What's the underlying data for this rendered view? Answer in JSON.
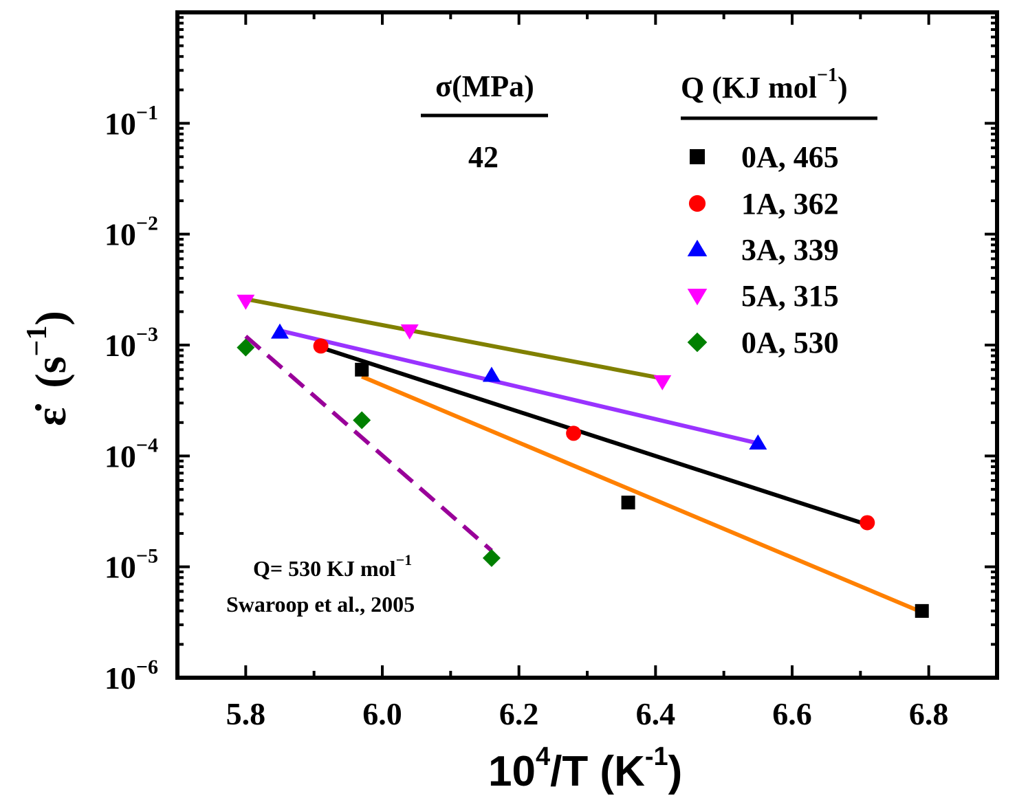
{
  "chart_data": {
    "type": "scatter",
    "title": "",
    "xlabel": "10^4/T (K^-1)",
    "xlabel_parts": {
      "base": "10",
      "sup1": "4",
      "mid": "/T (K",
      "sup2": "-1",
      "end": ")"
    },
    "ylabel": "ε̇ (s^-1)",
    "ylabel_parts": {
      "symbol": "ε̇",
      "open": "(s",
      "sup": "−1",
      "close": ")"
    },
    "xlim": [
      5.7,
      6.9
    ],
    "ylim_log10": [
      -6,
      0
    ],
    "y_scale": "log",
    "x_ticks": [
      5.8,
      6.0,
      6.2,
      6.4,
      6.6,
      6.8
    ],
    "x_tick_labels": [
      "5.8",
      "6.0",
      "6.2",
      "6.4",
      "6.6",
      "6.8"
    ],
    "y_tick_labels": [
      {
        "exp": -1,
        "base": "10",
        "sup": "−1"
      },
      {
        "exp": -2,
        "base": "10",
        "sup": "−2"
      },
      {
        "exp": -3,
        "base": "10",
        "sup": "−3"
      },
      {
        "exp": -4,
        "base": "10",
        "sup": "−4"
      },
      {
        "exp": -5,
        "base": "10",
        "sup": "−5"
      },
      {
        "exp": -6,
        "base": "10",
        "sup": "−6"
      }
    ],
    "stress_header": "σ(MPa)",
    "stress_value": "42",
    "q_header": "Q (KJ mol",
    "q_header_sup": "−1",
    "q_header_close": ")",
    "series": [
      {
        "name": "0A, 465",
        "marker": "square",
        "color": "#000000",
        "fit_color": "#ff8000",
        "x": [
          5.97,
          6.36,
          6.79
        ],
        "y": [
          0.0006,
          3.8e-05,
          4e-06
        ],
        "fit": {
          "x": [
            5.97,
            6.79
          ],
          "y": [
            0.00052,
            3.9e-06
          ],
          "dashed": false
        }
      },
      {
        "name": "1A, 362",
        "marker": "circle",
        "color": "#ff0000",
        "fit_color": "#000000",
        "x": [
          5.91,
          6.28,
          6.71
        ],
        "y": [
          0.00098,
          0.00016,
          2.5e-05
        ],
        "fit": {
          "x": [
            5.91,
            6.71
          ],
          "y": [
            0.00095,
            2.4e-05
          ],
          "dashed": false
        }
      },
      {
        "name": "3A, 339",
        "marker": "triangle-up",
        "color": "#0000ff",
        "fit_color": "#9933ff",
        "x": [
          5.85,
          6.16,
          6.55
        ],
        "y": [
          0.0013,
          0.00053,
          0.00013
        ],
        "fit": {
          "x": [
            5.85,
            6.55
          ],
          "y": [
            0.00135,
            0.00013
          ],
          "dashed": false
        }
      },
      {
        "name": "5A, 315",
        "marker": "triangle-down",
        "color": "#ff00ff",
        "fit_color": "#808000",
        "x": [
          5.8,
          6.04,
          6.41
        ],
        "y": [
          0.0025,
          0.00135,
          0.00047
        ],
        "fit": {
          "x": [
            5.8,
            6.41
          ],
          "y": [
            0.0026,
            0.0005
          ],
          "dashed": false
        }
      },
      {
        "name": "0A, 530",
        "marker": "diamond",
        "color": "#008000",
        "fit_color": "#990099",
        "x": [
          5.8,
          5.97,
          6.16
        ],
        "y": [
          0.00095,
          0.00021,
          1.2e-05
        ],
        "fit": {
          "x": [
            5.8,
            6.16
          ],
          "y": [
            0.0012,
            1.4e-05
          ],
          "dashed": true
        }
      }
    ],
    "annotations": [
      {
        "text": "Q= 530 KJ mol",
        "sup": "−1"
      },
      {
        "text": "Swaroop et al., 2005"
      }
    ],
    "legend_position": "top-right",
    "grid": false
  }
}
